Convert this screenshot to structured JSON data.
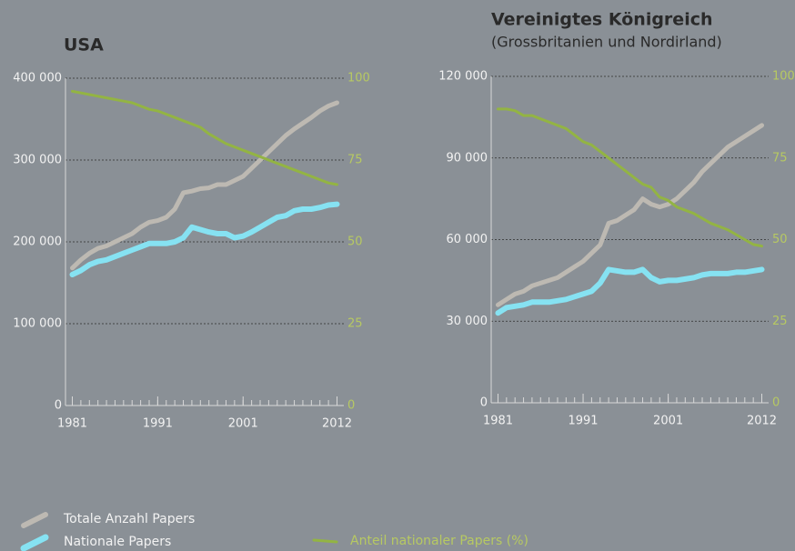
{
  "chart_data": [
    {
      "type": "line",
      "title": "USA",
      "x": [
        1981,
        1982,
        1983,
        1984,
        1985,
        1986,
        1987,
        1988,
        1989,
        1990,
        1991,
        1992,
        1993,
        1994,
        1995,
        1996,
        1997,
        1998,
        1999,
        2000,
        2001,
        2002,
        2003,
        2004,
        2005,
        2006,
        2007,
        2008,
        2009,
        2010,
        2011,
        2012
      ],
      "xlim": [
        1980.2,
        2012.8
      ],
      "xticks": [
        1981,
        1991,
        2001,
        2012
      ],
      "ylim": [
        0,
        400000
      ],
      "yticks": [
        0,
        {
          "value": 100000,
          "label": "100 000"
        },
        {
          "value": 200000,
          "label": "200 000"
        },
        {
          "value": 300000,
          "label": "300 000"
        },
        {
          "value": 400000,
          "label": "400 000"
        }
      ],
      "y2lim": [
        0,
        100
      ],
      "y2ticks": [
        0,
        25,
        50,
        75,
        100
      ],
      "grid": true,
      "series": [
        {
          "name": "Totale Anzahl Papers",
          "color": "#bdb9b2",
          "values": [
            168000,
            178000,
            186000,
            192000,
            195000,
            200000,
            205000,
            210000,
            218000,
            224000,
            226000,
            230000,
            240000,
            260000,
            262000,
            265000,
            266000,
            270000,
            270000,
            275000,
            280000,
            290000,
            300000,
            310000,
            320000,
            330000,
            338000,
            345000,
            352000,
            360000,
            366000,
            370000
          ]
        },
        {
          "name": "Nationale Papers",
          "color": "#86e2f2",
          "values": [
            160000,
            165000,
            172000,
            176000,
            178000,
            182000,
            186000,
            190000,
            194000,
            198000,
            198000,
            198000,
            200000,
            205000,
            218000,
            215000,
            212000,
            210000,
            210000,
            205000,
            207000,
            212000,
            218000,
            224000,
            230000,
            232000,
            238000,
            240000,
            240000,
            242000,
            245000,
            246000
          ]
        },
        {
          "name": "Anteil nationaler Papers (%)",
          "color": "#93b443",
          "axis": "y2",
          "values": [
            96,
            95.5,
            95,
            94.5,
            94,
            93.5,
            93,
            92.5,
            91.5,
            90.5,
            90,
            89,
            88,
            87,
            86,
            85,
            83,
            81.5,
            80,
            79,
            78,
            77,
            76,
            75,
            74,
            73,
            72,
            71,
            70,
            69,
            68,
            67.5
          ]
        }
      ]
    },
    {
      "type": "line",
      "title": "Vereinigtes Königreich",
      "subtitle": "(Grossbritanien und Nordirland)",
      "x": [
        1981,
        1982,
        1983,
        1984,
        1985,
        1986,
        1987,
        1988,
        1989,
        1990,
        1991,
        1992,
        1993,
        1994,
        1995,
        1996,
        1997,
        1998,
        1999,
        2000,
        2001,
        2002,
        2003,
        2004,
        2005,
        2006,
        2007,
        2008,
        2009,
        2010,
        2011,
        2012
      ],
      "xlim": [
        1980.2,
        2012.8
      ],
      "xticks": [
        1981,
        1991,
        2001,
        2012
      ],
      "ylim": [
        0,
        120000
      ],
      "yticks": [
        0,
        {
          "value": 30000,
          "label": "30 000"
        },
        {
          "value": 60000,
          "label": "60 000"
        },
        {
          "value": 90000,
          "label": "90 000"
        },
        {
          "value": 120000,
          "label": "120 000"
        }
      ],
      "y2lim": [
        0,
        100
      ],
      "y2ticks": [
        0,
        25,
        50,
        75,
        100
      ],
      "grid": true,
      "series": [
        {
          "color": "#bdb9b2",
          "values": [
            36000,
            38000,
            40000,
            41000,
            43000,
            44000,
            45000,
            46000,
            48000,
            50000,
            52000,
            55000,
            58000,
            66000,
            67000,
            69000,
            71000,
            75000,
            73000,
            72000,
            73000,
            75000,
            78000,
            81000,
            85000,
            88000,
            91000,
            94000,
            96000,
            98000,
            100000,
            102000
          ]
        },
        {
          "color": "#86e2f2",
          "values": [
            33000,
            35000,
            35500,
            36000,
            37000,
            37000,
            37000,
            37500,
            38000,
            39000,
            40000,
            41000,
            44000,
            49000,
            48500,
            48000,
            48000,
            49000,
            46000,
            44500,
            45000,
            45000,
            45500,
            46000,
            47000,
            47500,
            47500,
            47500,
            48000,
            48000,
            48500,
            49000
          ]
        },
        {
          "color": "#93b443",
          "axis": "y2",
          "values": [
            90,
            90,
            89.5,
            88,
            88,
            87,
            86,
            85,
            84,
            82,
            80,
            79,
            77,
            75,
            73,
            71,
            69,
            67,
            66,
            63,
            62,
            60,
            59,
            58,
            56.5,
            55,
            54,
            53,
            51.5,
            50,
            48.5,
            48
          ]
        }
      ]
    }
  ]
}
